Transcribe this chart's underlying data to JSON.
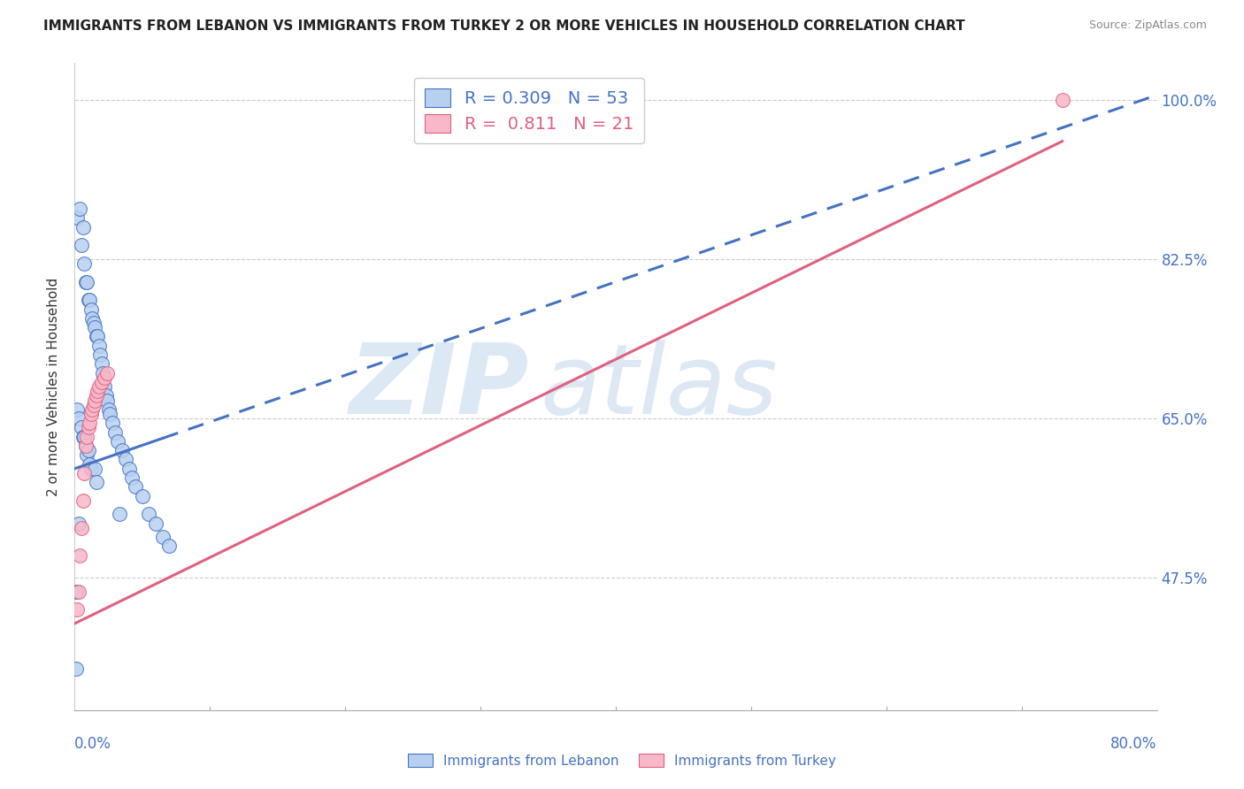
{
  "title": "IMMIGRANTS FROM LEBANON VS IMMIGRANTS FROM TURKEY 2 OR MORE VEHICLES IN HOUSEHOLD CORRELATION CHART",
  "source": "Source: ZipAtlas.com",
  "ylabel": "2 or more Vehicles in Household",
  "ytick_labels": [
    "100.0%",
    "82.5%",
    "65.0%",
    "47.5%"
  ],
  "ytick_values": [
    1.0,
    0.825,
    0.65,
    0.475
  ],
  "xmin": 0.0,
  "xmax": 0.8,
  "ymin": 0.33,
  "ymax": 1.04,
  "r_lebanon": 0.309,
  "n_lebanon": 53,
  "r_turkey": 0.811,
  "n_turkey": 21,
  "color_lebanon": "#b8d0f0",
  "color_turkey": "#f8b8c8",
  "line_color_lebanon": "#4472c4",
  "line_color_turkey": "#e06080",
  "watermark_zip": "ZIP",
  "watermark_atlas": "atlas",
  "watermark_color": "#dde8f5",
  "lebanon_x": [
    0.001,
    0.002,
    0.002,
    0.003,
    0.004,
    0.005,
    0.005,
    0.006,
    0.006,
    0.007,
    0.007,
    0.008,
    0.008,
    0.009,
    0.009,
    0.01,
    0.01,
    0.011,
    0.011,
    0.012,
    0.012,
    0.013,
    0.014,
    0.015,
    0.015,
    0.016,
    0.016,
    0.017,
    0.018,
    0.019,
    0.02,
    0.021,
    0.022,
    0.023,
    0.024,
    0.025,
    0.026,
    0.028,
    0.03,
    0.032,
    0.033,
    0.035,
    0.038,
    0.04,
    0.042,
    0.045,
    0.05,
    0.055,
    0.06,
    0.065,
    0.001,
    0.003,
    0.07
  ],
  "lebanon_y": [
    0.375,
    0.87,
    0.66,
    0.65,
    0.88,
    0.64,
    0.84,
    0.86,
    0.63,
    0.82,
    0.63,
    0.8,
    0.62,
    0.8,
    0.61,
    0.78,
    0.615,
    0.78,
    0.6,
    0.77,
    0.595,
    0.76,
    0.755,
    0.75,
    0.595,
    0.74,
    0.58,
    0.74,
    0.73,
    0.72,
    0.71,
    0.7,
    0.685,
    0.675,
    0.67,
    0.66,
    0.655,
    0.645,
    0.635,
    0.625,
    0.545,
    0.615,
    0.605,
    0.595,
    0.585,
    0.575,
    0.565,
    0.545,
    0.535,
    0.52,
    0.46,
    0.535,
    0.51
  ],
  "turkey_x": [
    0.002,
    0.003,
    0.004,
    0.005,
    0.006,
    0.007,
    0.008,
    0.009,
    0.01,
    0.011,
    0.012,
    0.013,
    0.014,
    0.015,
    0.016,
    0.017,
    0.018,
    0.02,
    0.022,
    0.024,
    0.73
  ],
  "turkey_y": [
    0.44,
    0.46,
    0.5,
    0.53,
    0.56,
    0.59,
    0.62,
    0.63,
    0.64,
    0.645,
    0.655,
    0.66,
    0.665,
    0.67,
    0.675,
    0.68,
    0.685,
    0.69,
    0.695,
    0.7,
    1.0
  ],
  "leb_line_x0": 0.0,
  "leb_line_y0": 0.595,
  "leb_line_x1": 0.8,
  "leb_line_y1": 1.005,
  "leb_line_solid_end": 0.065,
  "tur_line_x0": 0.0,
  "tur_line_y0": 0.425,
  "tur_line_x1": 0.8,
  "tur_line_y1": 1.005,
  "tur_line_solid_end": 0.73
}
